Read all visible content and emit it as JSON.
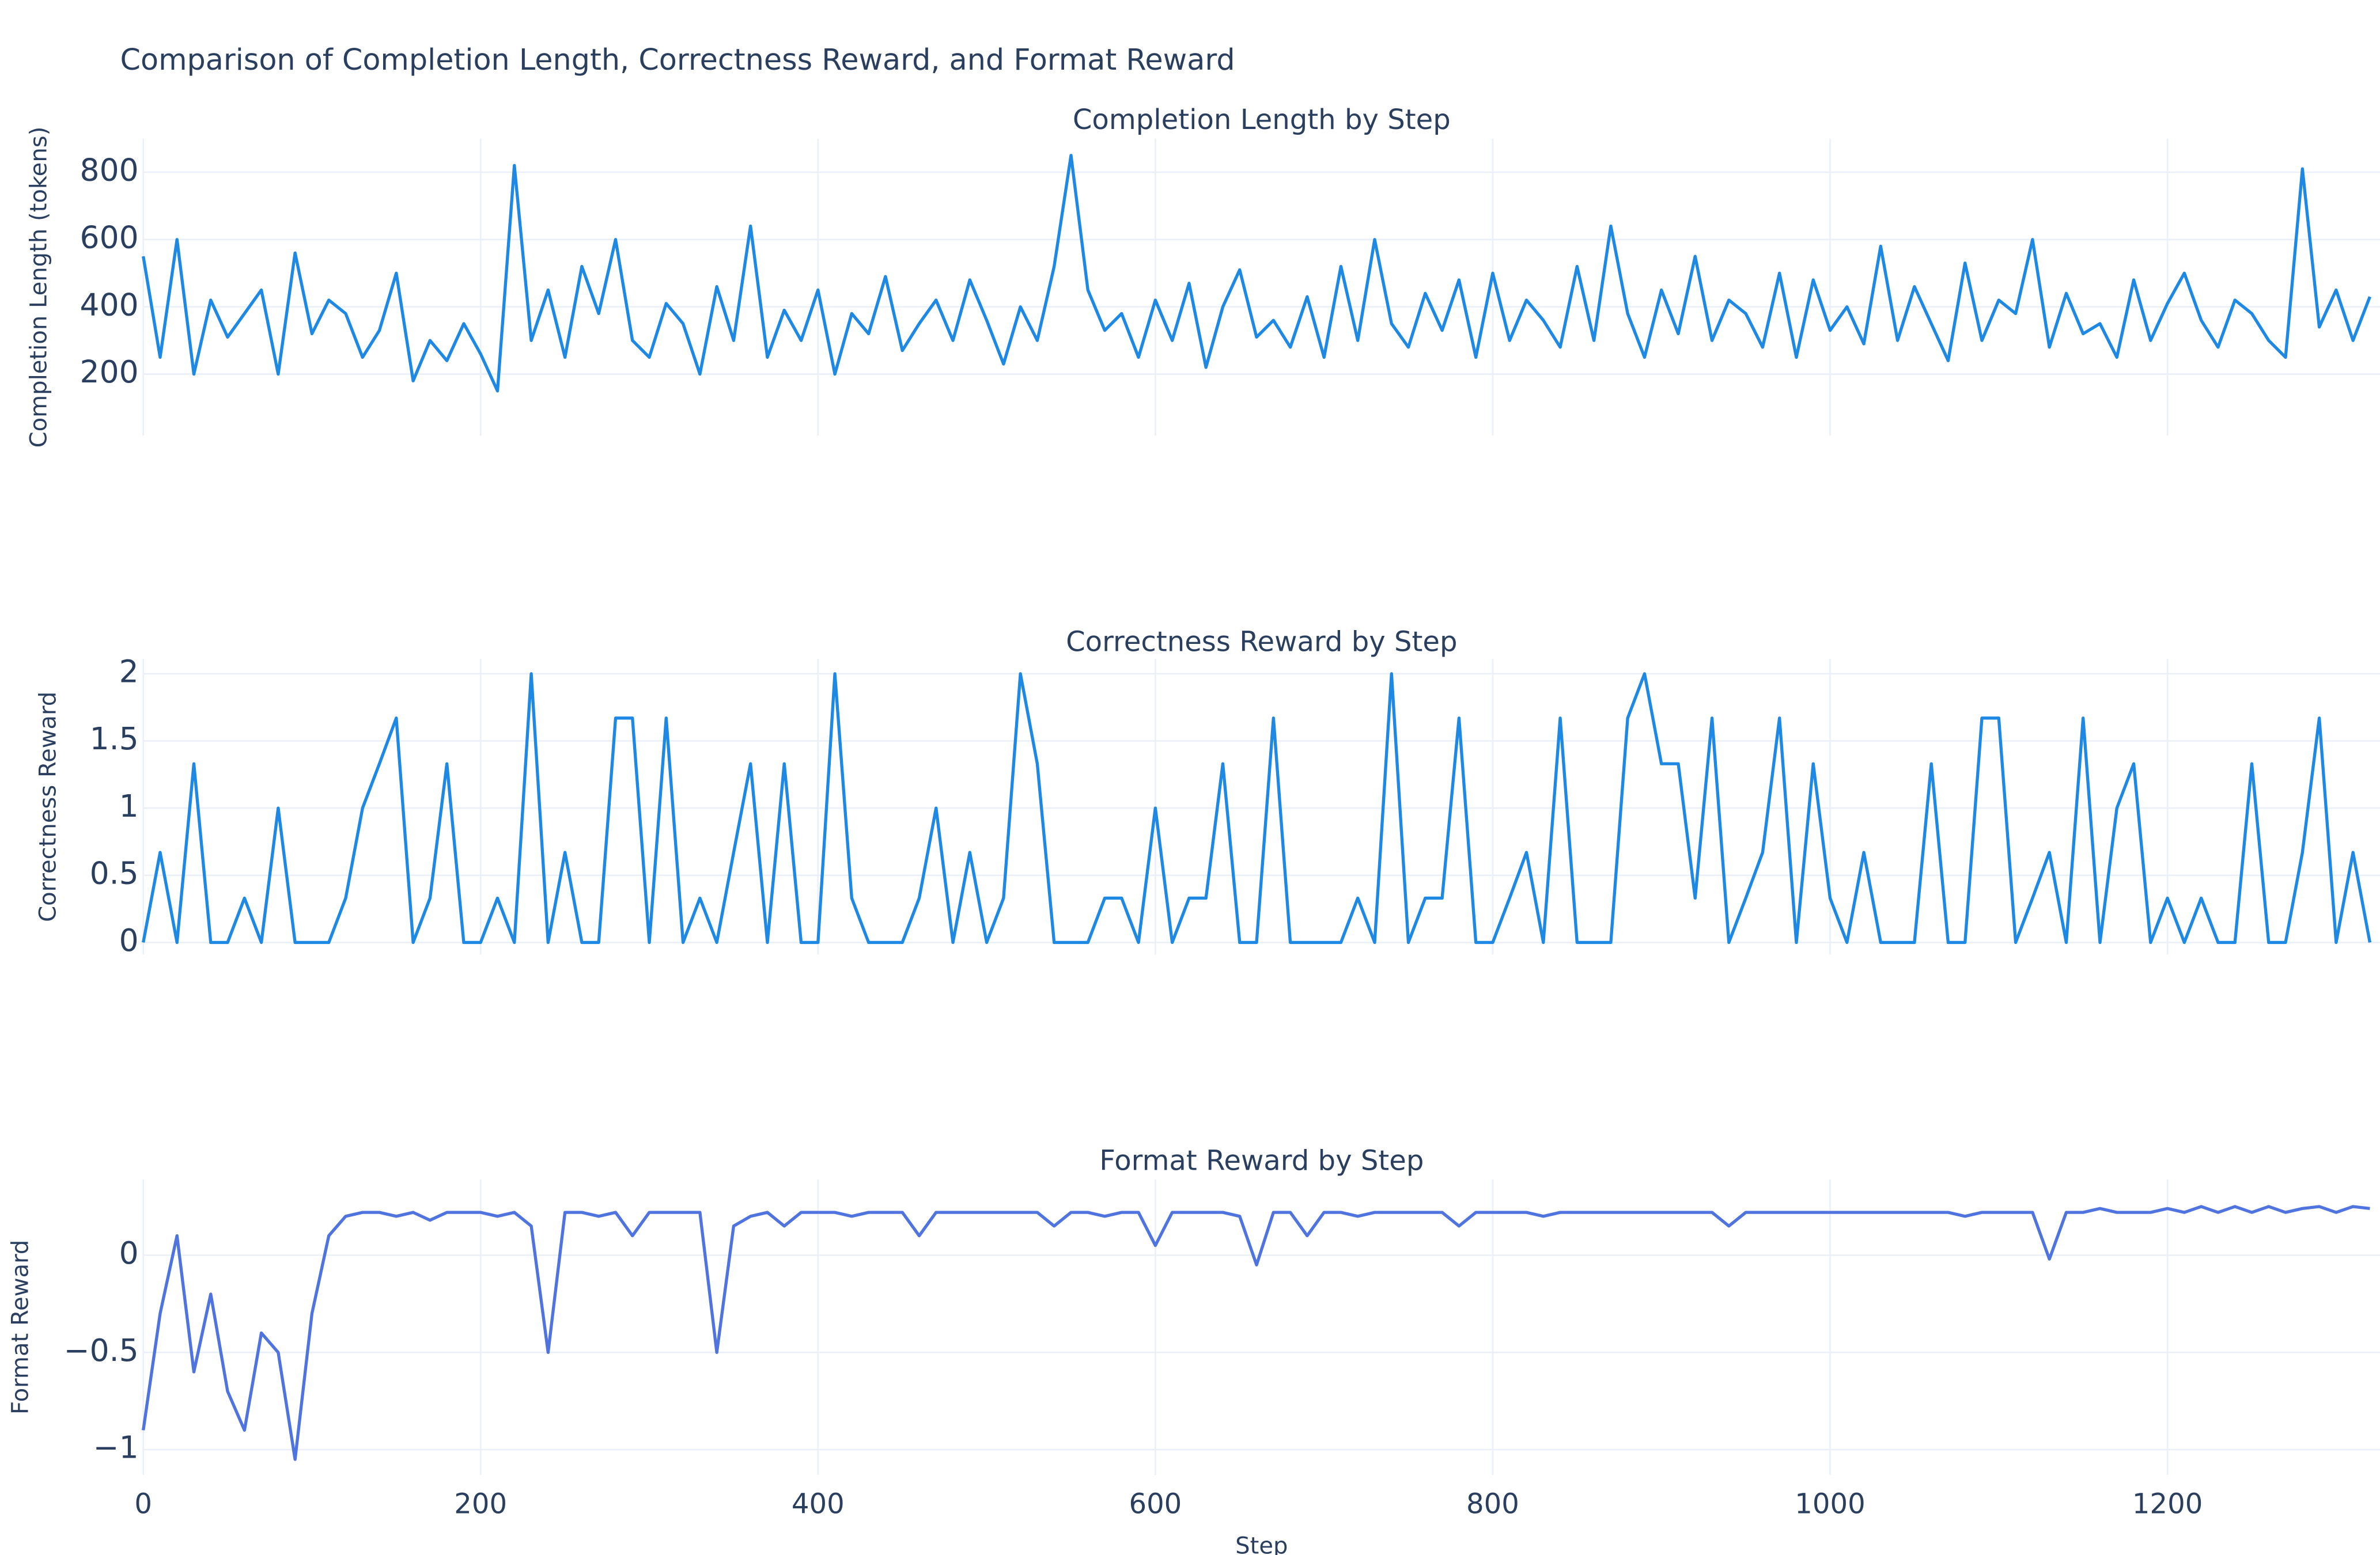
{
  "title": "Comparison of Completion Length, Correctness Reward, and Format Reward",
  "chart_data": [
    {
      "type": "line",
      "title": "Completion Length by Step",
      "y_label": "Completion Length (tokens)",
      "color": "#1e88e5",
      "grid": true,
      "xlim": [
        0,
        1326
      ],
      "xticks": [
        0,
        200,
        400,
        600,
        800,
        1000,
        1200
      ],
      "ylim": [
        17,
        900
      ],
      "yticks": [
        200,
        400,
        600,
        800
      ],
      "x": [
        0,
        10,
        20,
        30,
        40,
        50,
        60,
        70,
        80,
        90,
        100,
        110,
        120,
        130,
        140,
        150,
        160,
        170,
        180,
        190,
        200,
        210,
        220,
        230,
        240,
        250,
        260,
        270,
        280,
        290,
        300,
        310,
        320,
        330,
        340,
        350,
        360,
        370,
        380,
        390,
        400,
        410,
        420,
        430,
        440,
        450,
        460,
        470,
        480,
        490,
        500,
        510,
        520,
        530,
        540,
        550,
        560,
        570,
        580,
        590,
        600,
        610,
        620,
        630,
        640,
        650,
        660,
        670,
        680,
        690,
        700,
        710,
        720,
        730,
        740,
        750,
        760,
        770,
        780,
        790,
        800,
        810,
        820,
        830,
        840,
        850,
        860,
        870,
        880,
        890,
        900,
        910,
        920,
        930,
        940,
        950,
        960,
        970,
        980,
        990,
        1000,
        1010,
        1020,
        1030,
        1040,
        1050,
        1060,
        1070,
        1080,
        1090,
        1100,
        1110,
        1120,
        1130,
        1140,
        1150,
        1160,
        1170,
        1180,
        1190,
        1200,
        1210,
        1220,
        1230,
        1240,
        1250,
        1260,
        1270,
        1280,
        1290,
        1300,
        1310,
        1320
      ],
      "values": [
        550,
        250,
        600,
        200,
        420,
        310,
        380,
        450,
        200,
        560,
        320,
        420,
        380,
        250,
        330,
        500,
        180,
        300,
        240,
        350,
        260,
        150,
        820,
        300,
        450,
        250,
        520,
        380,
        600,
        300,
        250,
        410,
        350,
        200,
        460,
        300,
        640,
        250,
        390,
        300,
        450,
        200,
        380,
        320,
        490,
        270,
        350,
        420,
        300,
        480,
        360,
        230,
        400,
        300,
        520,
        850,
        450,
        330,
        380,
        250,
        420,
        300,
        470,
        220,
        400,
        510,
        310,
        360,
        280,
        430,
        250,
        520,
        300,
        600,
        350,
        280,
        440,
        330,
        480,
        250,
        500,
        300,
        420,
        360,
        280,
        520,
        300,
        640,
        380,
        250,
        450,
        320,
        550,
        300,
        420,
        380,
        280,
        500,
        250,
        480,
        330,
        400,
        290,
        580,
        300,
        460,
        350,
        240,
        530,
        300,
        420,
        380,
        600,
        280,
        440,
        320,
        350,
        250,
        480,
        300,
        410,
        500,
        360,
        280,
        420,
        380,
        300,
        250,
        810,
        340,
        450,
        300,
        430
      ]
    },
    {
      "type": "line",
      "title": "Correctness Reward by Step",
      "y_label": "Correctness Reward",
      "color": "#1e88e5",
      "grid": true,
      "xlim": [
        0,
        1326
      ],
      "xticks": [
        0,
        200,
        400,
        600,
        800,
        1000,
        1200
      ],
      "ylim": [
        -0.09,
        2.11
      ],
      "yticks": [
        0,
        0.5,
        1,
        1.5,
        2
      ],
      "x": [
        0,
        10,
        20,
        30,
        40,
        50,
        60,
        70,
        80,
        90,
        100,
        110,
        120,
        130,
        140,
        150,
        160,
        170,
        180,
        190,
        200,
        210,
        220,
        230,
        240,
        250,
        260,
        270,
        280,
        290,
        300,
        310,
        320,
        330,
        340,
        350,
        360,
        370,
        380,
        390,
        400,
        410,
        420,
        430,
        440,
        450,
        460,
        470,
        480,
        490,
        500,
        510,
        520,
        530,
        540,
        550,
        560,
        570,
        580,
        590,
        600,
        610,
        620,
        630,
        640,
        650,
        660,
        670,
        680,
        690,
        700,
        710,
        720,
        730,
        740,
        750,
        760,
        770,
        780,
        790,
        800,
        810,
        820,
        830,
        840,
        850,
        860,
        870,
        880,
        890,
        900,
        910,
        920,
        930,
        940,
        950,
        960,
        970,
        980,
        990,
        1000,
        1010,
        1020,
        1030,
        1040,
        1050,
        1060,
        1070,
        1080,
        1090,
        1100,
        1110,
        1120,
        1130,
        1140,
        1150,
        1160,
        1170,
        1180,
        1190,
        1200,
        1210,
        1220,
        1230,
        1240,
        1250,
        1260,
        1270,
        1280,
        1290,
        1300,
        1310,
        1320
      ],
      "values": [
        0,
        0.67,
        0,
        1.33,
        0,
        0,
        0.33,
        0,
        1,
        0,
        0,
        0,
        0.33,
        1,
        1.33,
        1.67,
        0,
        0.33,
        1.33,
        0,
        0,
        0.33,
        0,
        2,
        0,
        0.67,
        0,
        0,
        1.67,
        1.67,
        0,
        1.67,
        0,
        0.33,
        0,
        0.67,
        1.33,
        0,
        1.33,
        0,
        0,
        2,
        0.33,
        0,
        0,
        0,
        0.33,
        1,
        0,
        0.67,
        0,
        0.33,
        2,
        1.33,
        0,
        0,
        0,
        0.33,
        0.33,
        0,
        1,
        0,
        0.33,
        0.33,
        1.33,
        0,
        0,
        1.67,
        0,
        0,
        0,
        0,
        0.33,
        0,
        2,
        0,
        0.33,
        0.33,
        1.67,
        0,
        0,
        0.33,
        0.67,
        0,
        1.67,
        0,
        0,
        0,
        1.67,
        2,
        1.33,
        1.33,
        0.33,
        1.67,
        0,
        0.33,
        0.67,
        1.67,
        0,
        1.33,
        0.33,
        0,
        0.67,
        0,
        0,
        0,
        1.33,
        0,
        0,
        1.67,
        1.67,
        0,
        0.33,
        0.67,
        0,
        1.67,
        0,
        1,
        1.33,
        0,
        0.33,
        0,
        0.33,
        0,
        0,
        1.33,
        0,
        0,
        0.67,
        1.67,
        0,
        0.67,
        0
      ]
    },
    {
      "type": "line",
      "title": "Format Reward by Step",
      "y_label": "Format Reward",
      "x_label": "Step",
      "color": "#4f73df",
      "grid": true,
      "xlim": [
        0,
        1326
      ],
      "xticks": [
        0,
        200,
        400,
        600,
        800,
        1000,
        1200
      ],
      "ylim": [
        -1.13,
        0.39
      ],
      "yticks": [
        {
          "value": -1,
          "label": "−1"
        },
        {
          "value": -0.5,
          "label": "−0.5"
        },
        0
      ],
      "x": [
        0,
        10,
        20,
        30,
        40,
        50,
        60,
        70,
        80,
        90,
        100,
        110,
        120,
        130,
        140,
        150,
        160,
        170,
        180,
        190,
        200,
        210,
        220,
        230,
        240,
        250,
        260,
        270,
        280,
        290,
        300,
        310,
        320,
        330,
        340,
        350,
        360,
        370,
        380,
        390,
        400,
        410,
        420,
        430,
        440,
        450,
        460,
        470,
        480,
        490,
        500,
        510,
        520,
        530,
        540,
        550,
        560,
        570,
        580,
        590,
        600,
        610,
        620,
        630,
        640,
        650,
        660,
        670,
        680,
        690,
        700,
        710,
        720,
        730,
        740,
        750,
        760,
        770,
        780,
        790,
        800,
        810,
        820,
        830,
        840,
        850,
        860,
        870,
        880,
        890,
        900,
        910,
        920,
        930,
        940,
        950,
        960,
        970,
        980,
        990,
        1000,
        1010,
        1020,
        1030,
        1040,
        1050,
        1060,
        1070,
        1080,
        1090,
        1100,
        1110,
        1120,
        1130,
        1140,
        1150,
        1160,
        1170,
        1180,
        1190,
        1200,
        1210,
        1220,
        1230,
        1240,
        1250,
        1260,
        1270,
        1280,
        1290,
        1300,
        1310,
        1320
      ],
      "values": [
        -0.9,
        -0.3,
        0.1,
        -0.6,
        -0.2,
        -0.7,
        -0.9,
        -0.4,
        -0.5,
        -1.05,
        -0.3,
        0.1,
        0.2,
        0.22,
        0.22,
        0.2,
        0.22,
        0.18,
        0.22,
        0.22,
        0.22,
        0.2,
        0.22,
        0.15,
        -0.5,
        0.22,
        0.22,
        0.2,
        0.22,
        0.1,
        0.22,
        0.22,
        0.22,
        0.22,
        -0.5,
        0.15,
        0.2,
        0.22,
        0.15,
        0.22,
        0.22,
        0.22,
        0.2,
        0.22,
        0.22,
        0.22,
        0.1,
        0.22,
        0.22,
        0.22,
        0.22,
        0.22,
        0.22,
        0.22,
        0.15,
        0.22,
        0.22,
        0.2,
        0.22,
        0.22,
        0.05,
        0.22,
        0.22,
        0.22,
        0.22,
        0.2,
        -0.05,
        0.22,
        0.22,
        0.1,
        0.22,
        0.22,
        0.2,
        0.22,
        0.22,
        0.22,
        0.22,
        0.22,
        0.15,
        0.22,
        0.22,
        0.22,
        0.22,
        0.2,
        0.22,
        0.22,
        0.22,
        0.22,
        0.22,
        0.22,
        0.22,
        0.22,
        0.22,
        0.22,
        0.15,
        0.22,
        0.22,
        0.22,
        0.22,
        0.22,
        0.22,
        0.22,
        0.22,
        0.22,
        0.22,
        0.22,
        0.22,
        0.22,
        0.2,
        0.22,
        0.22,
        0.22,
        0.22,
        -0.02,
        0.22,
        0.22,
        0.24,
        0.22,
        0.22,
        0.22,
        0.24,
        0.22,
        0.25,
        0.22,
        0.25,
        0.22,
        0.25,
        0.22,
        0.24,
        0.25,
        0.22,
        0.25,
        0.24
      ]
    }
  ]
}
